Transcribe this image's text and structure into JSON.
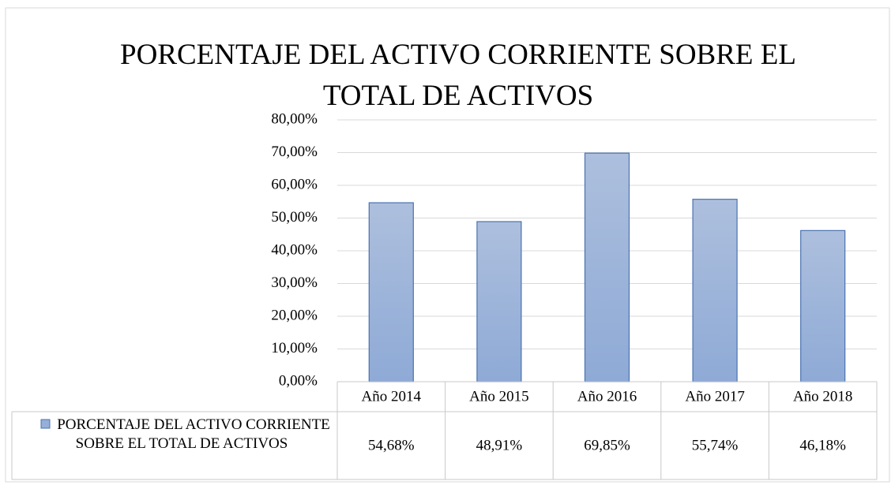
{
  "chart_data": {
    "type": "bar",
    "title": "PORCENTAJE DEL ACTIVO CORRIENTE SOBRE EL TOTAL DE ACTIVOS",
    "categories": [
      "Año 2014",
      "Año 2015",
      "Año 2016",
      "Año 2017",
      "Año 2018"
    ],
    "series": [
      {
        "name": "PORCENTAJE DEL ACTIVO CORRIENTE SOBRE EL TOTAL DE ACTIVOS",
        "color": "#95afd9",
        "values": [
          54.68,
          48.91,
          69.85,
          55.74,
          46.18
        ],
        "value_labels": [
          "54,68%",
          "48,91%",
          "69,85%",
          "55,74%",
          "46,18%"
        ]
      }
    ],
    "ylim": [
      0,
      80
    ],
    "yticks": [
      {
        "value": 0,
        "label": "0,00%"
      },
      {
        "value": 10,
        "label": "10,00%"
      },
      {
        "value": 20,
        "label": "20,00%"
      },
      {
        "value": 30,
        "label": "30,00%"
      },
      {
        "value": 40,
        "label": "40,00%"
      },
      {
        "value": 50,
        "label": "50,00%"
      },
      {
        "value": 60,
        "label": "60,00%"
      },
      {
        "value": 70,
        "label": "70,00%"
      },
      {
        "value": 80,
        "label": "80,00%"
      }
    ],
    "grid": true,
    "data_table": true
  }
}
